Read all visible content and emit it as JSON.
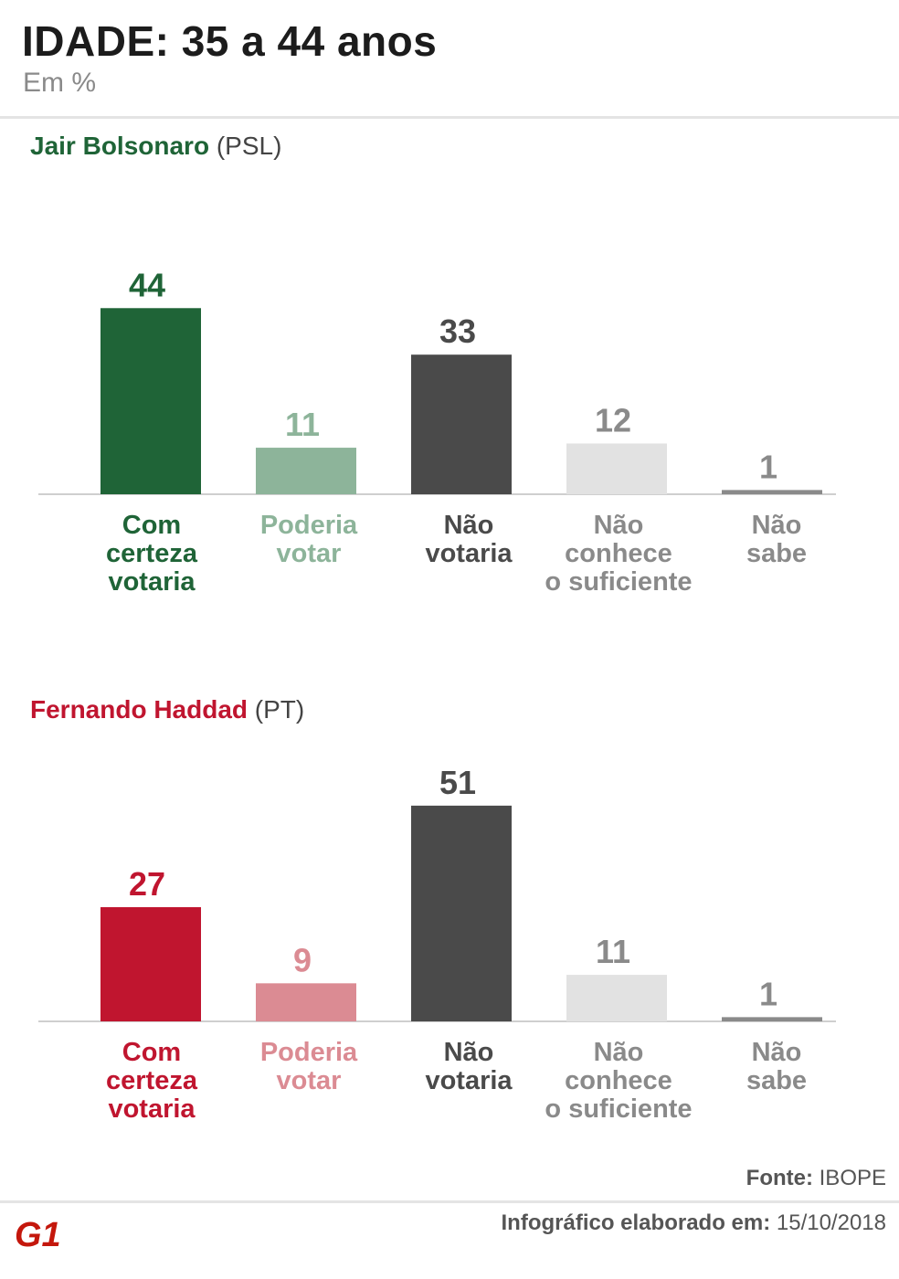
{
  "header": {
    "title": "IDADE: 35 a 44 anos",
    "subtitle": "Em %"
  },
  "colors": {
    "bolsonaro_primary": "#1f6437",
    "bolsonaro_light": "#8db49a",
    "haddad_primary": "#c0152f",
    "haddad_light": "#db8b93",
    "dark_gray": "#4a4a4a",
    "light_gray": "#e2e2e2",
    "mid_gray": "#8a8a8a"
  },
  "chart_data": [
    {
      "type": "bar",
      "candidate": "Jair Bolsonaro",
      "party": "(PSL)",
      "categories": [
        [
          "Com",
          "certeza",
          "votaria"
        ],
        [
          "Poderia",
          "votar"
        ],
        [
          "Não",
          "votaria"
        ],
        [
          "Não",
          "conhece",
          "o suficiente"
        ],
        [
          "Não",
          "sabe"
        ]
      ],
      "values": [
        44,
        11,
        33,
        12,
        1
      ]
    },
    {
      "type": "bar",
      "candidate": "Fernando Haddad",
      "party": "(PT)",
      "categories": [
        [
          "Com",
          "certeza",
          "votaria"
        ],
        [
          "Poderia",
          "votar"
        ],
        [
          "Não",
          "votaria"
        ],
        [
          "Não",
          "conhece",
          "o suficiente"
        ],
        [
          "Não",
          "sabe"
        ]
      ],
      "values": [
        27,
        9,
        51,
        11,
        1
      ]
    }
  ],
  "footer": {
    "source_key": "Fonte:",
    "source_value": "IBOPE",
    "date_key": "Infográfico elaborado em:",
    "date_value": "15/10/2018",
    "logo_text": "G1"
  }
}
